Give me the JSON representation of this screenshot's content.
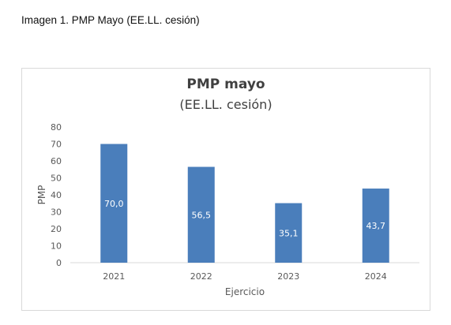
{
  "caption": "Imagen 1. PMP Mayo (EE.LL. cesión)",
  "chart_data": {
    "type": "bar",
    "title": "PMP mayo",
    "subtitle": "(EE.LL. cesión)",
    "categories": [
      "2021",
      "2022",
      "2023",
      "2024"
    ],
    "values": [
      70.0,
      56.5,
      35.1,
      43.7
    ],
    "data_labels": [
      "70,0",
      "56,5",
      "35,1",
      "43,7"
    ],
    "xlabel": "Ejercicio",
    "ylabel": "PMP",
    "ylim": [
      0,
      80
    ],
    "yticks": [
      0,
      10,
      20,
      30,
      40,
      50,
      60,
      70,
      80
    ],
    "grid": false,
    "legend": "none",
    "bar_color": "#4a7ebb"
  }
}
